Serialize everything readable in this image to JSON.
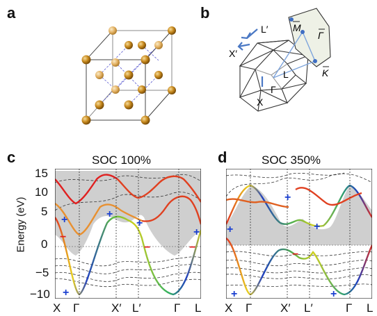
{
  "panels": {
    "a": {
      "label": "a"
    },
    "b": {
      "label": "b",
      "bz_labels": [
        "L′",
        "X′",
        "L",
        "Γ",
        "X"
      ],
      "surface_labels": [
        "M",
        "Γ",
        "K"
      ]
    },
    "c": {
      "label": "c",
      "title": "SOC 100%"
    },
    "d": {
      "label": "d",
      "title": "SOC 350%"
    }
  },
  "ylabel": "Energy (eV)",
  "y_ticks": [
    "15",
    "10",
    "5",
    "0",
    "−5",
    "−10"
  ],
  "k_labels": [
    "X",
    "Γ",
    "X′",
    "L′",
    "Γ",
    "L"
  ],
  "colors": {
    "atom": "#c88a1e",
    "atom_light": "#e8bb6e",
    "gap_fill": "#cfcfcf",
    "plus": "#1a3fd0",
    "minus": "#e02020",
    "arrow": "#4a78c4"
  },
  "chart_data": [
    {
      "type": "line",
      "title": "SOC 100%",
      "ylabel": "Energy (eV)",
      "ylim": [
        -11,
        15
      ],
      "y_ticks": [
        15,
        10,
        5,
        0,
        -5,
        -10
      ],
      "x_ticks": [
        "X",
        "Γ",
        "X′",
        "L′",
        "Γ",
        "L"
      ],
      "annotations": [
        "+",
        "−",
        "+",
        "+",
        "−",
        "+",
        "+",
        "−"
      ]
    },
    {
      "type": "line",
      "title": "SOC 350%",
      "ylim": [
        -11,
        15
      ],
      "y_ticks": [
        15,
        10,
        5,
        0,
        -5,
        -10
      ],
      "x_ticks": [
        "X",
        "Γ",
        "X′",
        "L′",
        "Γ",
        "L"
      ],
      "annotations": [
        "+",
        "+",
        "−",
        "+",
        "+",
        "+"
      ]
    }
  ]
}
